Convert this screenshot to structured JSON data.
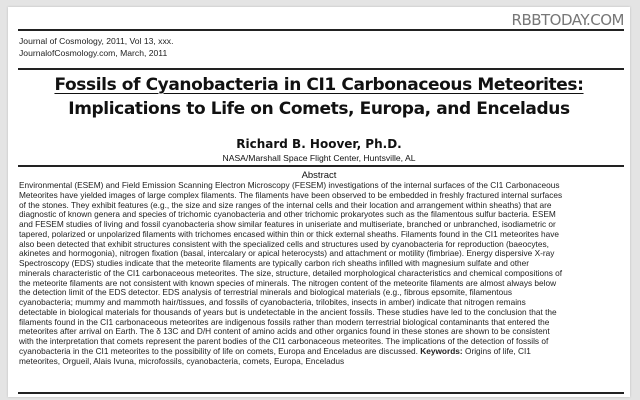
{
  "watermark": "RBBTODAY.COM",
  "header": {
    "line1": "Journal of Cosmology, 2011, Vol 13, xxx.",
    "line2": "JournalofCosmology.com, March, 2011"
  },
  "title": {
    "line1": "Fossils of Cyanobacteria in CI1 Carbonaceous Meteorites:",
    "line2": "Implications to Life on Comets, Europa, and Enceladus"
  },
  "author": "Richard B. Hoover, Ph.D.",
  "affiliation": "NASA/Marshall Space Flight Center, Huntsville, AL",
  "abstract": {
    "heading": "Abstract",
    "lines": [
      "Environmental (ESEM) and Field Emission Scanning Electron Microscopy (FESEM) investigations of the internal surfaces of the CI1 Carbonaceous",
      "Meteorites have yielded images of large complex filaments. The filaments have been observed to be embedded in freshly fractured internal surfaces",
      "of the stones. They exhibit features (e.g., the size and size ranges of the internal cells and their location and arrangement within sheaths) that are",
      "diagnostic of known genera and species of trichomic cyanobacteria and other trichomic prokaryotes such as the filamentous sulfur bacteria. ESEM",
      "and FESEM studies of living and fossil cyanobacteria show similar features in uniseriate and multiseriate, branched or unbranched, isodiametric or",
      "tapered, polarized or unpolarized filaments with trichomes encased within thin or thick external sheaths. Filaments found in the CI1 meteorites have",
      "also been detected that exhibit structures consistent with the specialized cells and structures used by cyanobacteria for reproduction (baeocytes,",
      "akinetes and hormogonia), nitrogen fixation (basal, intercalary or apical heterocysts) and attachment or motility (fimbriae). Energy dispersive X-ray",
      "Spectroscopy (EDS) studies indicate that the meteorite filaments are typically carbon rich sheaths infilled with magnesium sulfate and other",
      "minerals characteristic of the CI1 carbonaceous meteorites. The size, structure, detailed morphological characteristics and chemical compositions of",
      "the meteorite filaments are not consistent with known species of minerals. The nitrogen content of the meteorite filaments are almost always below",
      "the detection limit of the EDS detector. EDS analysis of terrestrial minerals and biological materials (e.g., fibrous epsomite, filamentous",
      "cyanobacteria; mummy and mammoth hair/tissues, and fossils of cyanobacteria, trilobites, insects in amber) indicate that nitrogen remains",
      "detectable in biological materials for thousands of years but is undetectable in the ancient fossils. These studies have led to the conclusion that the",
      "filaments found in the CI1 carbonaceous meteorites are indigenous fossils rather than modern terrestrial biological contaminants that entered the",
      "meteorites after arrival on Earth. The  δ 13C and D/H content of amino acids and other organics found in these stones are shown to be consistent",
      "with the interpretation that comets represent the parent bodies of the CI1 carbonaceous meteorites. The implications of the detection of fossils of"
    ],
    "line18": "cyanobacteria in the CI1 meteorites to the possibility of life on comets, Europa and Enceladus are discussed.",
    "keywords_label": "Keywords:",
    "keywords_line1": "Origins of life, CI1",
    "keywords_line2": "meteorites, Orgueil, Alais Ivuna, microfossils, cyanobacteria, comets, Europa, Enceladus"
  }
}
